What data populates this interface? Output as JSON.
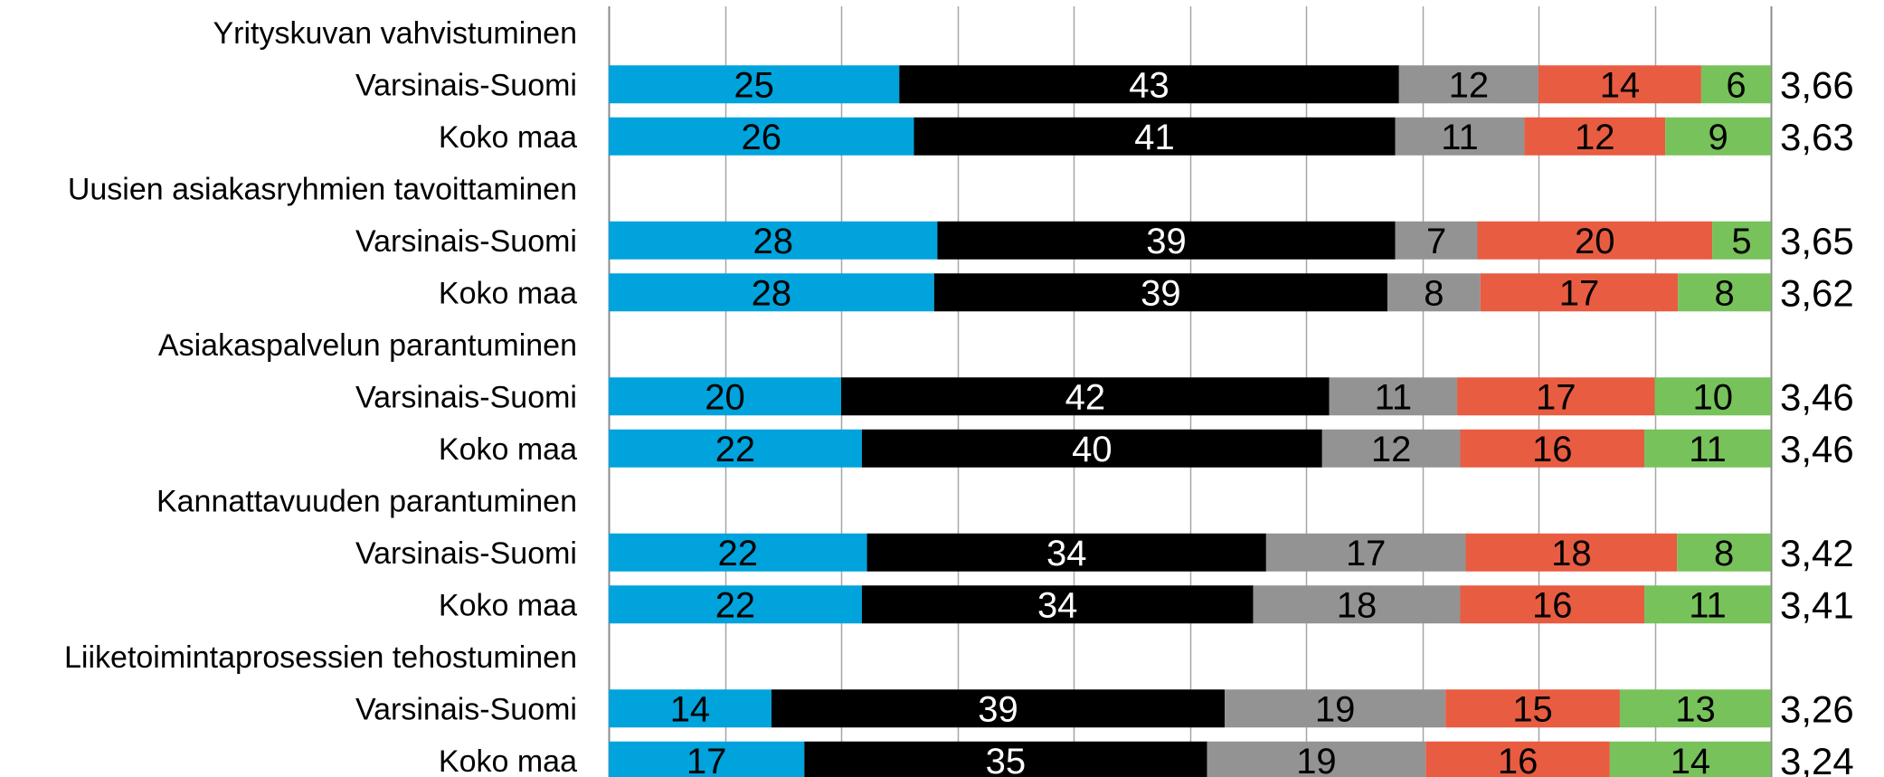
{
  "chart_data": {
    "type": "bar",
    "orientation": "horizontal",
    "stacked": true,
    "percent_stacked": true,
    "xlim": [
      0,
      100
    ],
    "grid": true,
    "legend": "none",
    "colors": [
      "#00a3dc",
      "#000000",
      "#939393",
      "#e85c41",
      "#77c25a"
    ],
    "label_colors": [
      "#000000",
      "#ffffff",
      "#000000",
      "#000000",
      "#000000"
    ],
    "groups": [
      {
        "title": "Yrityskuvan vahvistuminen",
        "rows": [
          {
            "label": "Varsinais-Suomi",
            "values": [
              25,
              43,
              12,
              14,
              6
            ],
            "average": "3,66"
          },
          {
            "label": "Koko maa",
            "values": [
              26,
              41,
              11,
              12,
              9
            ],
            "average": "3,63"
          }
        ]
      },
      {
        "title": "Uusien asiakasryhmien tavoittaminen",
        "rows": [
          {
            "label": "Varsinais-Suomi",
            "values": [
              28,
              39,
              7,
              20,
              5
            ],
            "average": "3,65"
          },
          {
            "label": "Koko maa",
            "values": [
              28,
              39,
              8,
              17,
              8
            ],
            "average": "3,62"
          }
        ]
      },
      {
        "title": "Asiakaspalvelun parantuminen",
        "rows": [
          {
            "label": "Varsinais-Suomi",
            "values": [
              20,
              42,
              11,
              17,
              10
            ],
            "average": "3,46"
          },
          {
            "label": "Koko maa",
            "values": [
              22,
              40,
              12,
              16,
              11
            ],
            "average": "3,46"
          }
        ]
      },
      {
        "title": "Kannattavuuden parantuminen",
        "rows": [
          {
            "label": "Varsinais-Suomi",
            "values": [
              22,
              34,
              17,
              18,
              8
            ],
            "average": "3,42"
          },
          {
            "label": "Koko maa",
            "values": [
              22,
              34,
              18,
              16,
              11
            ],
            "average": "3,41"
          }
        ]
      },
      {
        "title": "Liiketoimintaprosessien tehostuminen",
        "rows": [
          {
            "label": "Varsinais-Suomi",
            "values": [
              14,
              39,
              19,
              15,
              13
            ],
            "average": "3,26"
          },
          {
            "label": "Koko maa",
            "values": [
              17,
              35,
              19,
              16,
              14
            ],
            "average": "3,24"
          }
        ]
      }
    ]
  }
}
